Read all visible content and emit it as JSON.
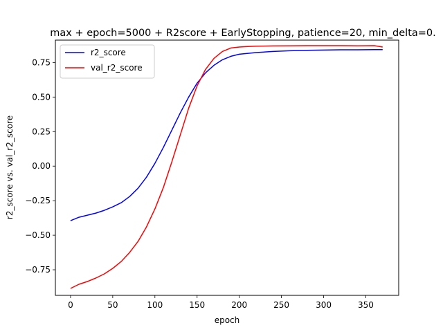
{
  "chart_data": {
    "type": "line",
    "title": "max + epoch=5000 + R2score + EarlyStopping, patience=20, min_delta=0.",
    "xlabel": "epoch",
    "ylabel": "r2_score vs. val_r2_score",
    "xlim": [
      -18,
      389
    ],
    "ylim": [
      -0.935,
      0.912
    ],
    "xticks": [
      0,
      50,
      100,
      150,
      200,
      250,
      300,
      350
    ],
    "yticks": [
      -0.75,
      -0.5,
      -0.25,
      0.0,
      0.25,
      0.5,
      0.75
    ],
    "ytick_labels": [
      "−0.75",
      "−0.50",
      "−0.25",
      "0.00",
      "0.25",
      "0.50",
      "0.75"
    ],
    "grid": false,
    "legend": {
      "position": "upper-left"
    },
    "series": [
      {
        "name": "r2_score",
        "color": "#0000ff",
        "x": [
          0,
          10,
          20,
          30,
          40,
          50,
          60,
          70,
          80,
          90,
          100,
          110,
          120,
          130,
          140,
          150,
          160,
          170,
          180,
          190,
          200,
          220,
          240,
          260,
          280,
          300,
          320,
          340,
          360,
          370
        ],
        "y": [
          -0.395,
          -0.37,
          -0.355,
          -0.34,
          -0.32,
          -0.295,
          -0.265,
          -0.22,
          -0.16,
          -0.08,
          0.02,
          0.135,
          0.26,
          0.385,
          0.5,
          0.6,
          0.675,
          0.73,
          0.77,
          0.795,
          0.81,
          0.822,
          0.83,
          0.835,
          0.838,
          0.84,
          0.842,
          0.842,
          0.843,
          0.843
        ]
      },
      {
        "name": "val_r2_score",
        "color": "#ff0000",
        "x": [
          0,
          10,
          20,
          30,
          40,
          50,
          60,
          70,
          80,
          90,
          100,
          110,
          120,
          130,
          140,
          150,
          160,
          170,
          180,
          190,
          200,
          210,
          220,
          240,
          260,
          280,
          300,
          320,
          340,
          360,
          370
        ],
        "y": [
          -0.885,
          -0.855,
          -0.835,
          -0.81,
          -0.78,
          -0.74,
          -0.69,
          -0.625,
          -0.545,
          -0.44,
          -0.31,
          -0.155,
          0.03,
          0.225,
          0.42,
          0.58,
          0.7,
          0.78,
          0.83,
          0.855,
          0.862,
          0.866,
          0.868,
          0.87,
          0.871,
          0.872,
          0.872,
          0.872,
          0.871,
          0.872,
          0.862
        ]
      }
    ]
  }
}
